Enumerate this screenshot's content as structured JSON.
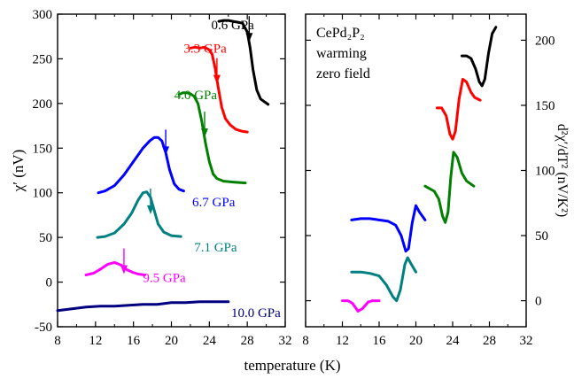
{
  "chart_data": [
    {
      "type": "line",
      "xlabel": "temperature (K)",
      "ylabel": "χ′ (nV)",
      "xlim": [
        8,
        32
      ],
      "ylim": [
        -50,
        300
      ],
      "xticks": [
        8,
        12,
        16,
        20,
        24,
        28,
        32
      ],
      "yticks": [
        -50,
        0,
        50,
        100,
        150,
        200,
        250,
        300
      ],
      "xtick_labels": [
        "8",
        "12",
        "16",
        "20",
        "24",
        "28",
        "32"
      ],
      "ytick_labels": [
        "-50",
        "0",
        "50",
        "100",
        "150",
        "200",
        "250",
        "300"
      ],
      "series": [
        {
          "name": "0.6 GPa",
          "color": "#000000",
          "points": [
            [
              25.0,
              292
            ],
            [
              25.5,
              293
            ],
            [
              26.0,
              293
            ],
            [
              26.5,
              292
            ],
            [
              27.0,
              291
            ],
            [
              27.5,
              290
            ],
            [
              28.0,
              280
            ],
            [
              28.3,
              262
            ],
            [
              28.6,
              238
            ],
            [
              29.0,
              215
            ],
            [
              29.4,
              205
            ],
            [
              29.8,
              202
            ],
            [
              30.2,
              199
            ]
          ],
          "arrow": [
            28.2,
            270
          ],
          "label_pos": [
            24.2,
            288
          ]
        },
        {
          "name": "3.3 GPa",
          "color": "#ff0000",
          "points": [
            [
              22.0,
              262
            ],
            [
              22.5,
              263
            ],
            [
              23.0,
              262
            ],
            [
              23.5,
              263
            ],
            [
              24.0,
              260
            ],
            [
              24.3,
              255
            ],
            [
              24.6,
              240
            ],
            [
              24.9,
              220
            ],
            [
              25.3,
              196
            ],
            [
              25.7,
              183
            ],
            [
              26.2,
              176
            ],
            [
              26.8,
              171
            ],
            [
              27.4,
              169
            ],
            [
              28.0,
              168
            ]
          ],
          "arrow": [
            24.8,
            223
          ],
          "label_pos": [
            21.3,
            262
          ]
        },
        {
          "name": "4.0 GPa",
          "color": "#008000",
          "points": [
            [
              20.8,
              210
            ],
            [
              21.2,
              212
            ],
            [
              21.6,
              212
            ],
            [
              22.0,
              211
            ],
            [
              22.4,
              208
            ],
            [
              22.8,
              200
            ],
            [
              23.2,
              180
            ],
            [
              23.6,
              155
            ],
            [
              24.0,
              135
            ],
            [
              24.4,
              121
            ],
            [
              24.8,
              116
            ],
            [
              25.5,
              113
            ],
            [
              26.5,
              112
            ],
            [
              27.8,
              111
            ]
          ],
          "arrow": [
            23.5,
            163
          ],
          "label_pos": [
            20.3,
            210
          ]
        },
        {
          "name": "6.7 GPa",
          "color": "#0000ff",
          "points": [
            [
              12.3,
              100
            ],
            [
              13.0,
              102
            ],
            [
              14.0,
              108
            ],
            [
              15.0,
              120
            ],
            [
              16.0,
              135
            ],
            [
              17.0,
              150
            ],
            [
              17.7,
              158
            ],
            [
              18.2,
              162
            ],
            [
              18.6,
              162
            ],
            [
              19.0,
              158
            ],
            [
              19.4,
              145
            ],
            [
              19.8,
              126
            ],
            [
              20.3,
              110
            ],
            [
              20.8,
              104
            ],
            [
              21.3,
              102
            ]
          ],
          "arrow": [
            19.4,
            143
          ],
          "label_pos": [
            22.2,
            90
          ]
        },
        {
          "name": "7.1 GPa",
          "color": "#008080",
          "points": [
            [
              12.2,
              50
            ],
            [
              13.0,
              51
            ],
            [
              14.0,
              55
            ],
            [
              15.0,
              65
            ],
            [
              15.8,
              77
            ],
            [
              16.5,
              92
            ],
            [
              17.0,
              100
            ],
            [
              17.4,
              101
            ],
            [
              17.8,
              95
            ],
            [
              18.2,
              80
            ],
            [
              18.6,
              65
            ],
            [
              19.2,
              56
            ],
            [
              20.0,
              52
            ],
            [
              21.0,
              51
            ]
          ],
          "arrow": [
            17.8,
            77
          ],
          "label_pos": [
            22.4,
            39
          ]
        },
        {
          "name": "9.5 GPa",
          "color": "#ff00ff",
          "points": [
            [
              11.0,
              8
            ],
            [
              11.8,
              10
            ],
            [
              12.6,
              15
            ],
            [
              13.3,
              20
            ],
            [
              14.0,
              22
            ],
            [
              14.7,
              19
            ],
            [
              15.3,
              14
            ],
            [
              15.9,
              11
            ],
            [
              16.5,
              9
            ],
            [
              17.2,
              8
            ]
          ],
          "arrow": [
            15.0,
            10
          ],
          "label_pos": [
            17.0,
            5
          ]
        },
        {
          "name": "10.0 GPa",
          "color": "#000080",
          "points": [
            [
              8.0,
              -32
            ],
            [
              9.5,
              -30
            ],
            [
              11.0,
              -28
            ],
            [
              12.5,
              -27
            ],
            [
              14.0,
              -27
            ],
            [
              15.5,
              -26
            ],
            [
              17.0,
              -25
            ],
            [
              18.5,
              -25
            ],
            [
              20.0,
              -23
            ],
            [
              21.5,
              -23
            ],
            [
              23.0,
              -22
            ],
            [
              24.5,
              -22
            ],
            [
              26.0,
              -22
            ]
          ],
          "arrow": null,
          "label_pos": [
            26.3,
            -34
          ]
        }
      ]
    },
    {
      "type": "line",
      "xlabel": "temperature (K)",
      "ylabel": "d²χ′/dT² (nV/K²)",
      "xlim": [
        8,
        32
      ],
      "ylim": [
        -20,
        220
      ],
      "xticks": [
        8,
        12,
        16,
        20,
        24,
        28,
        32
      ],
      "yticks": [
        0,
        50,
        100,
        150,
        200
      ],
      "xtick_labels": [
        "8",
        "12",
        "16",
        "20",
        "24",
        "28",
        "32"
      ],
      "ytick_labels": [
        "0",
        "50",
        "100",
        "150",
        "200"
      ],
      "annotation": [
        "CePd₂P₂",
        "warming",
        "zero field"
      ],
      "series": [
        {
          "name": "0.6 GPa",
          "color": "#000000",
          "points": [
            [
              25.0,
              188
            ],
            [
              25.5,
              188
            ],
            [
              26.0,
              186
            ],
            [
              26.5,
              178
            ],
            [
              26.9,
              168
            ],
            [
              27.2,
              165
            ],
            [
              27.5,
              170
            ],
            [
              27.9,
              190
            ],
            [
              28.3,
              205
            ],
            [
              28.7,
              210
            ]
          ]
        },
        {
          "name": "3.3 GPa",
          "color": "#ff0000",
          "points": [
            [
              22.3,
              148
            ],
            [
              22.8,
              148
            ],
            [
              23.3,
              142
            ],
            [
              23.7,
              128
            ],
            [
              24.0,
              124
            ],
            [
              24.3,
              130
            ],
            [
              24.7,
              155
            ],
            [
              25.1,
              170
            ],
            [
              25.5,
              168
            ],
            [
              26.0,
              160
            ],
            [
              26.4,
              156
            ],
            [
              27.0,
              154
            ]
          ]
        },
        {
          "name": "4.0 GPa",
          "color": "#008000",
          "points": [
            [
              21.0,
              88
            ],
            [
              21.5,
              86
            ],
            [
              22.0,
              84
            ],
            [
              22.5,
              78
            ],
            [
              22.9,
              65
            ],
            [
              23.2,
              60
            ],
            [
              23.5,
              68
            ],
            [
              23.8,
              95
            ],
            [
              24.1,
              114
            ],
            [
              24.5,
              110
            ],
            [
              25.0,
              98
            ],
            [
              25.5,
              92
            ],
            [
              26.3,
              88
            ]
          ]
        },
        {
          "name": "6.7 GPa",
          "color": "#0000ff",
          "points": [
            [
              13.0,
              62
            ],
            [
              14.0,
              63
            ],
            [
              15.0,
              63
            ],
            [
              16.0,
              62
            ],
            [
              17.0,
              61
            ],
            [
              17.8,
              58
            ],
            [
              18.4,
              50
            ],
            [
              18.9,
              38
            ],
            [
              19.2,
              40
            ],
            [
              19.6,
              60
            ],
            [
              20.0,
              73
            ],
            [
              20.4,
              68
            ],
            [
              21.0,
              62
            ]
          ]
        },
        {
          "name": "7.1 GPa",
          "color": "#008080",
          "points": [
            [
              13.0,
              22
            ],
            [
              14.0,
              22
            ],
            [
              15.0,
              21
            ],
            [
              16.0,
              19
            ],
            [
              16.8,
              12
            ],
            [
              17.5,
              3
            ],
            [
              17.9,
              0
            ],
            [
              18.3,
              8
            ],
            [
              18.8,
              28
            ],
            [
              19.1,
              33
            ],
            [
              19.5,
              28
            ],
            [
              20.0,
              22
            ]
          ]
        },
        {
          "name": "9.5 GPa",
          "color": "#ff00ff",
          "points": [
            [
              12.0,
              0
            ],
            [
              12.6,
              0
            ],
            [
              13.1,
              -2
            ],
            [
              13.7,
              -8
            ],
            [
              14.2,
              -6
            ],
            [
              14.8,
              -1
            ],
            [
              15.3,
              0
            ],
            [
              16.0,
              0
            ]
          ]
        }
      ]
    }
  ]
}
